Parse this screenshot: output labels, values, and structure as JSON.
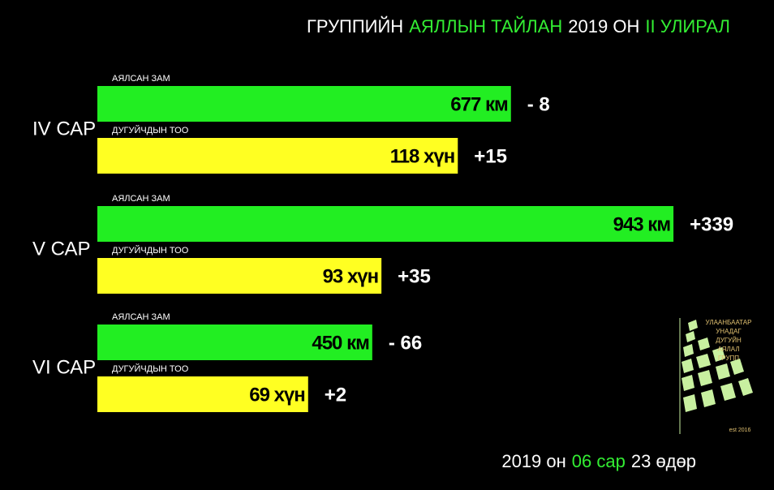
{
  "chart_data": {
    "type": "bar",
    "title_parts": [
      {
        "text": "ГРУППИЙН",
        "color": "#ffffff"
      },
      {
        "text": "АЯЛЛЫН ТАЙЛАН",
        "color": "#33ee33"
      },
      {
        "text": "2019 ОН",
        "color": "#ffffff"
      },
      {
        "text": "II УЛИРАЛ",
        "color": "#33ee33"
      }
    ],
    "categories": [
      "IV САР",
      "V САР",
      "VI САР"
    ],
    "series": [
      {
        "name": "АЯЛСАН ЗАМ",
        "color": "#22ee22",
        "xlim": [
          0,
          1000
        ],
        "values": [
          677,
          943,
          450
        ],
        "value_labels": [
          "677 км",
          "943 км",
          "450 км"
        ],
        "change_values": [
          -8,
          339,
          -66
        ],
        "change_labels": [
          "- 8",
          "+339",
          "- 66"
        ]
      },
      {
        "name": "ДУГУЙЧДЫН ТОО",
        "color": "#ffff22",
        "xlim": [
          0,
          200
        ],
        "values": [
          118,
          93,
          69
        ],
        "value_labels": [
          "118 хүн",
          "93 хүн",
          "69 хүн"
        ],
        "change_values": [
          15,
          35,
          2
        ],
        "change_labels": [
          "+15",
          "+35",
          "+2"
        ]
      }
    ],
    "date_parts": [
      {
        "text": "2019 он",
        "color": "#ffffff"
      },
      {
        "text": "06 сар",
        "color": "#33ee33"
      },
      {
        "text": "23 өдөр",
        "color": "#ffffff"
      }
    ],
    "logo_lines": [
      "УЛААНБААТАР",
      "УНАДАГ",
      "ДУГУЙН",
      "АЯЛАЛ",
      "ГРУПП"
    ],
    "logo_note": "est 2016"
  }
}
